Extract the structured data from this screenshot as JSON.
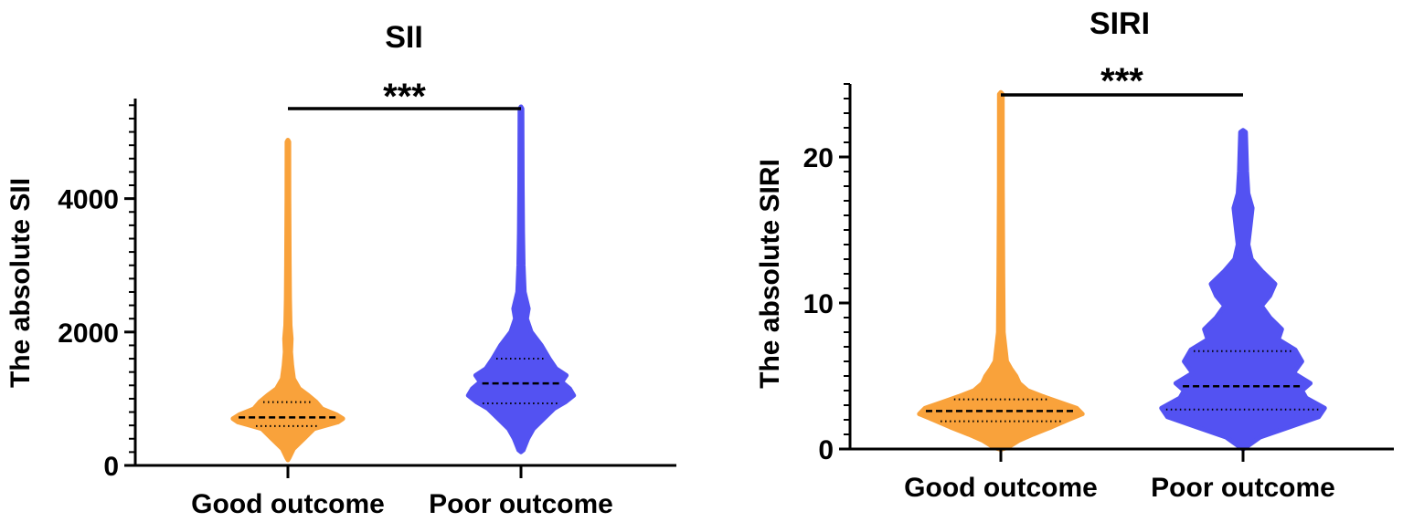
{
  "colors": {
    "good": "#F9A23B",
    "poor": "#5352F2",
    "axis": "#000000"
  },
  "chart_data": [
    {
      "type": "violin",
      "title": "SII",
      "ylabel": "The absolute SII",
      "xlabel": "",
      "ylim": [
        0,
        5500
      ],
      "yticks": [
        0,
        2000,
        4000
      ],
      "ytick_labels": [
        "0",
        "2000",
        "4000"
      ],
      "minor_tick_step": 200,
      "categories": [
        "Good outcome",
        "Poor outcome"
      ],
      "significance": {
        "label": "***",
        "between": [
          "Good outcome",
          "Poor outcome"
        ],
        "y": 5400
      },
      "series": [
        {
          "category": "Good outcome",
          "color_key": "good",
          "median": 720,
          "q1": 590,
          "q3": 950,
          "min": 110,
          "max": 4850,
          "shape": [
            [
              110,
              0.02
            ],
            [
              250,
              0.1
            ],
            [
              400,
              0.28
            ],
            [
              550,
              0.46
            ],
            [
              650,
              0.88
            ],
            [
              700,
              0.97
            ],
            [
              760,
              0.86
            ],
            [
              850,
              0.6
            ],
            [
              950,
              0.5
            ],
            [
              1050,
              0.36
            ],
            [
              1150,
              0.2
            ],
            [
              1300,
              0.1
            ],
            [
              1500,
              0.07
            ],
            [
              1700,
              0.05
            ],
            [
              1900,
              0.06
            ],
            [
              2100,
              0.04
            ],
            [
              2500,
              0.03
            ],
            [
              3000,
              0.025
            ],
            [
              4000,
              0.02
            ],
            [
              4850,
              0.018
            ]
          ]
        },
        {
          "category": "Poor outcome",
          "color_key": "poor",
          "median": 1230,
          "q1": 930,
          "q3": 1600,
          "min": 230,
          "max": 5350,
          "shape": [
            [
              230,
              0.04
            ],
            [
              400,
              0.12
            ],
            [
              550,
              0.22
            ],
            [
              700,
              0.4
            ],
            [
              850,
              0.58
            ],
            [
              950,
              0.78
            ],
            [
              1050,
              0.93
            ],
            [
              1150,
              0.86
            ],
            [
              1250,
              0.72
            ],
            [
              1350,
              0.8
            ],
            [
              1450,
              0.62
            ],
            [
              1600,
              0.5
            ],
            [
              1800,
              0.36
            ],
            [
              2000,
              0.18
            ],
            [
              2200,
              0.1
            ],
            [
              2350,
              0.13
            ],
            [
              2600,
              0.06
            ],
            [
              3000,
              0.04
            ],
            [
              3500,
              0.03
            ],
            [
              4200,
              0.025
            ],
            [
              5350,
              0.02
            ]
          ]
        }
      ]
    },
    {
      "type": "violin",
      "title": "SIRI",
      "ylabel": "The absolute SIRI",
      "xlabel": "",
      "ylim": [
        0,
        25
      ],
      "yticks": [
        0,
        10,
        20
      ],
      "ytick_labels": [
        "0",
        "10",
        "20"
      ],
      "minor_tick_step": 1,
      "categories": [
        "Good outcome",
        "Poor outcome"
      ],
      "significance": {
        "label": "***",
        "between": [
          "Good outcome",
          "Poor outcome"
        ],
        "y": 24.5
      },
      "series": [
        {
          "category": "Good outcome",
          "color_key": "good",
          "median": 2.6,
          "q1": 1.9,
          "q3": 3.4,
          "min": 0.1,
          "max": 24.3,
          "shape": [
            [
              0.1,
              0.08
            ],
            [
              0.6,
              0.22
            ],
            [
              1.0,
              0.38
            ],
            [
              1.5,
              0.6
            ],
            [
              2.0,
              0.8
            ],
            [
              2.4,
              0.97
            ],
            [
              2.8,
              0.9
            ],
            [
              3.2,
              0.7
            ],
            [
              3.6,
              0.5
            ],
            [
              4.0,
              0.32
            ],
            [
              4.5,
              0.22
            ],
            [
              5.0,
              0.18
            ],
            [
              5.5,
              0.12
            ],
            [
              6.0,
              0.07
            ],
            [
              7.0,
              0.05
            ],
            [
              8.0,
              0.03
            ],
            [
              12.0,
              0.025
            ],
            [
              18.0,
              0.02
            ],
            [
              24.3,
              0.018
            ]
          ]
        },
        {
          "category": "Poor outcome",
          "color_key": "poor",
          "median": 4.3,
          "q1": 2.7,
          "q3": 6.7,
          "min": 0.1,
          "max": 21.7,
          "shape": [
            [
              0.1,
              0.03
            ],
            [
              0.8,
              0.2
            ],
            [
              1.5,
              0.55
            ],
            [
              2.2,
              0.9
            ],
            [
              2.8,
              0.97
            ],
            [
              3.5,
              0.75
            ],
            [
              4.0,
              0.7
            ],
            [
              4.5,
              0.8
            ],
            [
              5.2,
              0.6
            ],
            [
              6.0,
              0.7
            ],
            [
              6.8,
              0.62
            ],
            [
              7.5,
              0.42
            ],
            [
              8.2,
              0.46
            ],
            [
              9.0,
              0.32
            ],
            [
              9.8,
              0.22
            ],
            [
              10.5,
              0.32
            ],
            [
              11.3,
              0.38
            ],
            [
              12.2,
              0.22
            ],
            [
              13.0,
              0.1
            ],
            [
              14.0,
              0.06
            ],
            [
              15.5,
              0.09
            ],
            [
              16.5,
              0.11
            ],
            [
              17.5,
              0.06
            ],
            [
              19.0,
              0.045
            ],
            [
              21.7,
              0.03
            ]
          ]
        }
      ]
    }
  ]
}
